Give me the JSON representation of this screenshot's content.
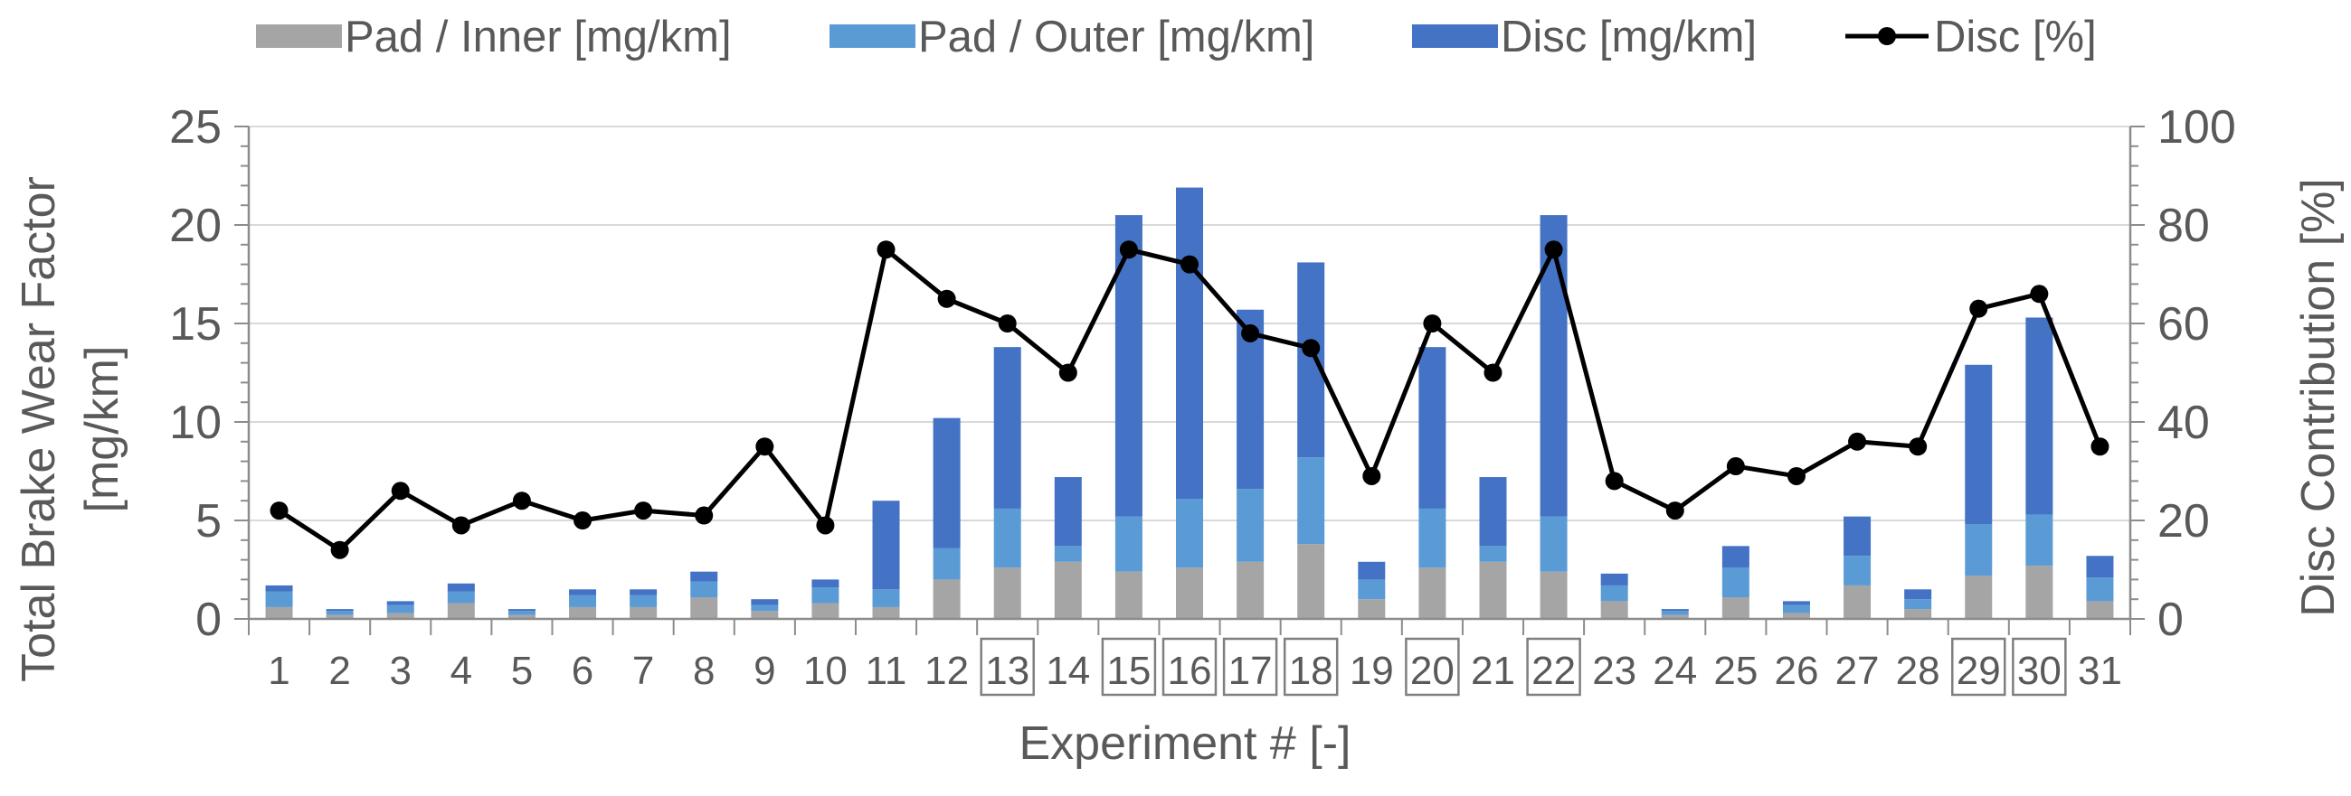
{
  "chart_data": {
    "type": "bar",
    "stacked": true,
    "categories": [
      "1",
      "2",
      "3",
      "4",
      "5",
      "6",
      "7",
      "8",
      "9",
      "10",
      "11",
      "12",
      "13",
      "14",
      "15",
      "16",
      "17",
      "18",
      "19",
      "20",
      "21",
      "22",
      "23",
      "24",
      "25",
      "26",
      "27",
      "28",
      "29",
      "30",
      "31"
    ],
    "boxed_categories": [
      "13",
      "15",
      "16",
      "17",
      "18",
      "20",
      "22",
      "29",
      "30"
    ],
    "series": [
      {
        "name": "Pad / Inner [mg/km]",
        "color": "#a5a5a5",
        "axis": "left",
        "values": [
          0.6,
          0.2,
          0.3,
          0.8,
          0.2,
          0.6,
          0.6,
          1.1,
          0.4,
          0.8,
          0.6,
          2.0,
          2.6,
          2.9,
          2.4,
          2.6,
          2.9,
          3.8,
          1.0,
          2.6,
          2.9,
          2.4,
          0.9,
          0.2,
          1.1,
          0.3,
          1.7,
          0.5,
          2.2,
          2.7,
          0.9
        ]
      },
      {
        "name": "Pad / Outer [mg/km]",
        "color": "#5b9bd5",
        "axis": "left",
        "values": [
          0.8,
          0.2,
          0.4,
          0.6,
          0.2,
          0.6,
          0.6,
          0.8,
          0.3,
          0.8,
          0.9,
          1.6,
          3.0,
          0.8,
          2.8,
          3.5,
          3.7,
          4.4,
          1.0,
          3.0,
          0.8,
          2.8,
          0.8,
          0.2,
          1.5,
          0.4,
          1.5,
          0.5,
          2.6,
          2.6,
          1.2
        ]
      },
      {
        "name": "Disc [mg/km]",
        "color": "#4472c4",
        "axis": "left",
        "values": [
          0.3,
          0.1,
          0.2,
          0.4,
          0.1,
          0.3,
          0.3,
          0.5,
          0.3,
          0.4,
          4.5,
          6.6,
          8.2,
          3.5,
          15.3,
          15.8,
          9.1,
          9.9,
          0.9,
          8.2,
          3.5,
          15.3,
          0.6,
          0.1,
          1.1,
          0.2,
          2.0,
          0.5,
          8.1,
          10.0,
          1.1
        ]
      },
      {
        "name": "Disc [%]",
        "color": "#000000",
        "axis": "right",
        "kind": "line",
        "values": [
          22,
          14,
          26,
          19,
          24,
          20,
          22,
          21,
          35,
          19,
          75,
          65,
          60,
          50,
          75,
          72,
          58,
          55,
          29,
          60,
          50,
          75,
          28,
          22,
          31,
          29,
          36,
          35,
          63,
          66,
          35
        ]
      }
    ],
    "title": "",
    "xlabel": "Experiment # [-]",
    "ylabel": [
      "Total Brake Wear Factor",
      "[mg/km]"
    ],
    "y2label": "Disc Contribution  [%]",
    "ylim": [
      0,
      25
    ],
    "y2lim": [
      0,
      100
    ],
    "yticks": [
      "0",
      "5",
      "10",
      "15",
      "20",
      "25"
    ],
    "y2ticks": [
      "0",
      "20",
      "40",
      "60",
      "80",
      "100"
    ],
    "grid": true,
    "legend_position": "top"
  }
}
